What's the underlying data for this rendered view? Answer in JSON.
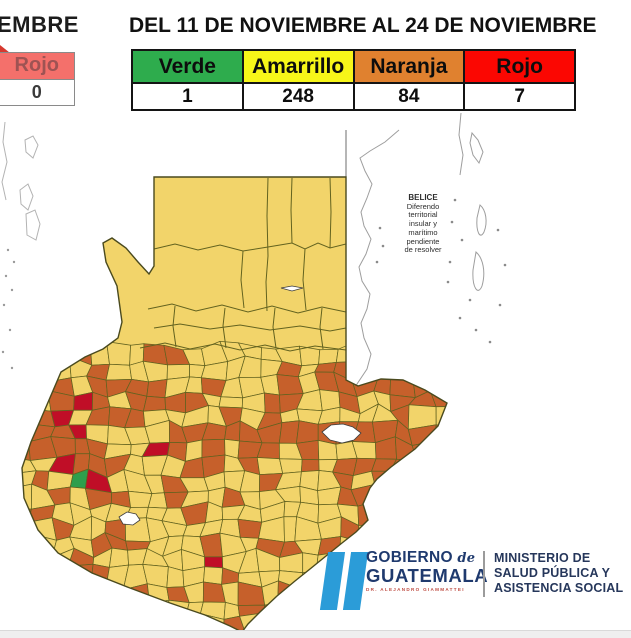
{
  "title": "DEL 11 DE NOVIEMBRE AL 24 DE NOVIEMBRE",
  "left_table": {
    "title_fragment": "EMBRE",
    "header": "Rojo",
    "value": "0",
    "header_color": "#F4706B",
    "header_text_color": "#9E5353"
  },
  "summary_table": {
    "columns": [
      {
        "label": "Verde",
        "value": "1",
        "color": "#2EAC4D"
      },
      {
        "label": "Amarrillo",
        "value": "248",
        "color": "#F7F619"
      },
      {
        "label": "Naranja",
        "value": "84",
        "color": "#E0812F"
      },
      {
        "label": "Rojo",
        "value": "7",
        "color": "#FB0702"
      }
    ]
  },
  "belize_note": {
    "lines": [
      "BELICE",
      "Diferendo",
      "territorial",
      "insular y",
      "marítimo",
      "pendiente",
      "de resolver"
    ]
  },
  "map": {
    "colors": {
      "yellow": "#F2D46A",
      "orange": "#C6602B",
      "red": "#C00E27",
      "green": "#2E9E4C",
      "border": "#62621F",
      "outline": "#4A4A1E",
      "water": "#FFFFFF"
    },
    "status_counts": {
      "verde": 1,
      "amarillo": 248,
      "naranja": 84,
      "rojo": 7
    }
  },
  "footer": {
    "gobierno": "GOBIERNO",
    "de": "de",
    "guatemala": "GUATEMALA",
    "president": "DR. ALEJANDRO GIAMMATTEI",
    "ministry_lines": [
      "MINISTERIO DE",
      "SALUD PÚBLICA Y",
      "ASISTENCIA SOCIAL"
    ]
  }
}
